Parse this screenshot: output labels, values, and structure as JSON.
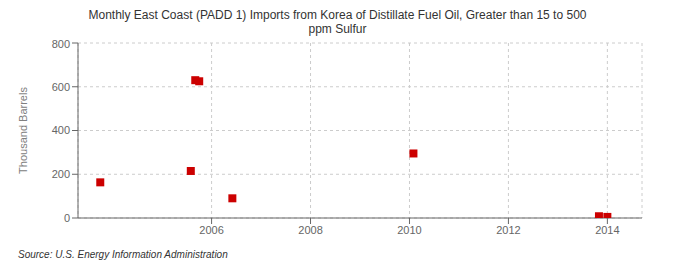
{
  "chart_data": {
    "type": "scatter",
    "title": "Monthly East Coast (PADD 1) Imports from Korea of Distillate Fuel Oil, Greater than 15 to 500\nppm Sulfur",
    "y_label": "Thousand Barrels",
    "annotations": [
      "Source: U.S. Energy Information Administration"
    ],
    "x": [
      2003.75,
      2005.58,
      2005.67,
      2005.75,
      2006.42,
      2010.08,
      2013.83,
      2014.0
    ],
    "values": [
      163,
      215,
      630,
      625,
      90,
      295,
      8,
      5
    ],
    "color": "#cc0000",
    "marker": "square",
    "xlim": [
      2003.3,
      2014.7
    ],
    "xticks": [
      2006,
      2008,
      2010,
      2012,
      2014
    ],
    "ylim": [
      0,
      800
    ],
    "yticks": [
      0,
      200,
      400,
      600,
      800
    ],
    "grid": true
  }
}
